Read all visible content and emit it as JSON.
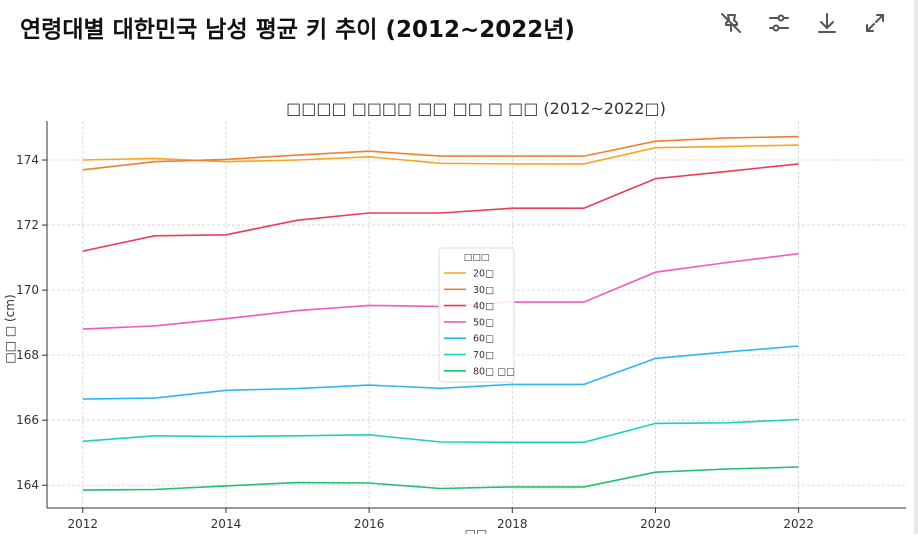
{
  "header": {
    "title": "연령대별 대한민국 남성 평균 키 추이 (2012~2022년)",
    "tools": [
      {
        "name": "pin-off-icon"
      },
      {
        "name": "sliders-icon"
      },
      {
        "name": "download-icon"
      },
      {
        "name": "expand-icon"
      }
    ]
  },
  "chart_data": {
    "type": "line",
    "title": "연령대별 대한민국 남성 평균 키 추이 (2012~2022년)",
    "title_display": "□□□□ □□□□ □□ □□ □ □□ (2012~2022□)",
    "xlabel": "",
    "xlabel_display": "□□",
    "ylabel": "평균 키 (cm)",
    "ylabel_display": "□□ □ (cm)",
    "xlim": [
      2011.5,
      2023.5
    ],
    "ylim": [
      163.3,
      175.2
    ],
    "x_ticks": [
      2012,
      2014,
      2016,
      2018,
      2020,
      2022
    ],
    "y_ticks": [
      164,
      166,
      168,
      170,
      172,
      174
    ],
    "grid": true,
    "legend_position": "center",
    "legend_title": "연령대",
    "legend_title_display": "□□□",
    "x": [
      2012,
      2013,
      2014,
      2015,
      2016,
      2017,
      2018,
      2019,
      2020,
      2021,
      2022
    ],
    "series": [
      {
        "name": "20대",
        "label": "20□",
        "color": "#f5a623",
        "values": [
          174.0,
          174.05,
          173.95,
          174.0,
          174.1,
          173.9,
          173.88,
          173.88,
          174.38,
          174.42,
          174.46
        ]
      },
      {
        "name": "30대",
        "label": "30□",
        "color": "#f0802f",
        "values": [
          173.7,
          173.95,
          174.02,
          174.15,
          174.27,
          174.12,
          174.12,
          174.12,
          174.58,
          174.68,
          174.72
        ]
      },
      {
        "name": "40대",
        "label": "40□",
        "color": "#ec3c53",
        "values": [
          171.2,
          171.67,
          171.7,
          172.15,
          172.37,
          172.37,
          172.52,
          172.52,
          173.43,
          173.65,
          173.88
        ]
      },
      {
        "name": "50대",
        "label": "50□",
        "color": "#f05bbd",
        "values": [
          168.8,
          168.9,
          169.12,
          169.37,
          169.53,
          169.5,
          169.63,
          169.63,
          170.55,
          170.85,
          171.12
        ]
      },
      {
        "name": "60대",
        "label": "60□",
        "color": "#2eb8ee",
        "values": [
          166.65,
          166.68,
          166.92,
          166.97,
          167.08,
          166.98,
          167.1,
          167.1,
          167.9,
          168.1,
          168.28
        ]
      },
      {
        "name": "70대",
        "label": "70□",
        "color": "#1fcfc0",
        "values": [
          165.35,
          165.52,
          165.5,
          165.52,
          165.55,
          165.33,
          165.32,
          165.32,
          165.9,
          165.92,
          166.02
        ]
      },
      {
        "name": "80대 이상",
        "label": "80□ □□",
        "color": "#1ec26a",
        "values": [
          163.85,
          163.87,
          163.98,
          164.08,
          164.07,
          163.9,
          163.95,
          163.95,
          164.4,
          164.5,
          164.56
        ]
      }
    ]
  }
}
